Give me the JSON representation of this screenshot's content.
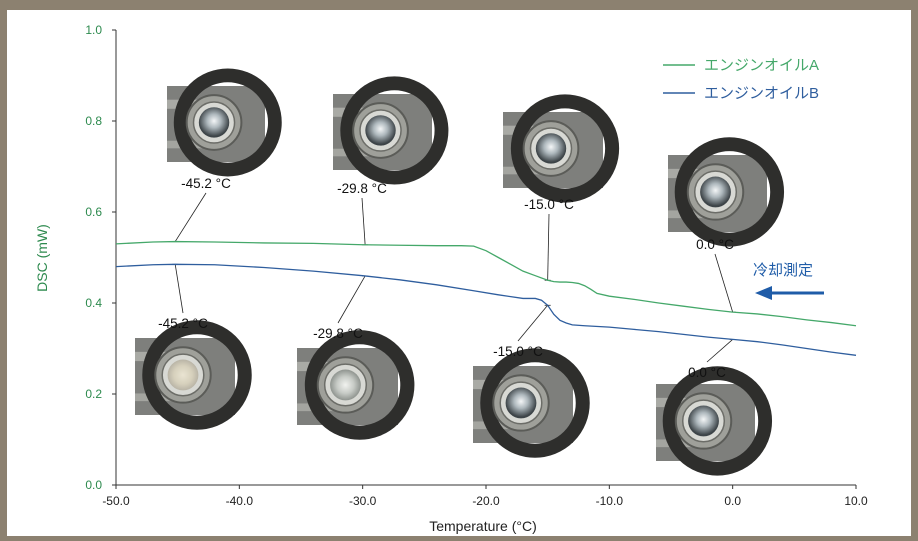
{
  "colors": {
    "series_a": "#45a86a",
    "series_b": "#2f5e9e",
    "y_axis": "#2d8a4e",
    "arrow": "#1f5ca8"
  },
  "chart_data": {
    "type": "line",
    "xlabel": "Temperature (°C)",
    "ylabel": "DSC (mW)",
    "xlim": [
      -50,
      10
    ],
    "ylim": [
      0,
      1.0
    ],
    "x_ticks": [
      "-50.0",
      "-40.0",
      "-30.0",
      "-20.0",
      "-10.0",
      "0.0",
      "10.0"
    ],
    "x_tick_values": [
      -50,
      -40,
      -30,
      -20,
      -10,
      0,
      10
    ],
    "y_ticks": [
      "0.0",
      "0.2",
      "0.4",
      "0.6",
      "0.8",
      "1.0"
    ],
    "y_tick_values": [
      0,
      0.2,
      0.4,
      0.6,
      0.8,
      1.0
    ],
    "grid": false,
    "legend_position": "top-right",
    "series": [
      {
        "name": "エンジンオイルA",
        "color_key": "series_a",
        "x": [
          -50,
          -47,
          -45.2,
          -42,
          -38,
          -34,
          -30,
          -27,
          -24,
          -22,
          -21,
          -20,
          -19,
          -18,
          -17,
          -16,
          -15,
          -14.5,
          -14,
          -13.5,
          -13,
          -12.5,
          -12,
          -11.5,
          -11,
          -10,
          -8,
          -6,
          -4,
          -2,
          0,
          2,
          4,
          6,
          8,
          10
        ],
        "y": [
          0.53,
          0.534,
          0.535,
          0.534,
          0.532,
          0.531,
          0.528,
          0.527,
          0.526,
          0.526,
          0.525,
          0.515,
          0.5,
          0.485,
          0.47,
          0.46,
          0.45,
          0.447,
          0.446,
          0.446,
          0.445,
          0.443,
          0.438,
          0.43,
          0.421,
          0.415,
          0.408,
          0.4,
          0.393,
          0.386,
          0.38,
          0.376,
          0.37,
          0.363,
          0.357,
          0.35
        ]
      },
      {
        "name": "エンジンオイルB",
        "color_key": "series_b",
        "x": [
          -50,
          -47,
          -45.2,
          -42,
          -38,
          -34,
          -30,
          -27,
          -24,
          -21,
          -19,
          -18,
          -17,
          -16,
          -15.5,
          -15,
          -14.5,
          -14,
          -13.5,
          -13,
          -12,
          -10,
          -8,
          -6,
          -4,
          -2,
          0,
          2,
          4,
          6,
          8,
          10
        ],
        "y": [
          0.48,
          0.484,
          0.485,
          0.484,
          0.478,
          0.47,
          0.46,
          0.451,
          0.44,
          0.427,
          0.418,
          0.414,
          0.41,
          0.41,
          0.406,
          0.395,
          0.375,
          0.362,
          0.356,
          0.352,
          0.35,
          0.347,
          0.342,
          0.337,
          0.331,
          0.325,
          0.32,
          0.315,
          0.308,
          0.3,
          0.292,
          0.285
        ]
      }
    ],
    "annotations_top": [
      {
        "label": "-45.2 °C",
        "x": -45.2
      },
      {
        "label": "-29.8 °C",
        "x": -29.8
      },
      {
        "label": "-15.0 °C",
        "x": -15.0
      },
      {
        "label": "0.0 °C",
        "x": 0.0
      }
    ],
    "annotations_bottom": [
      {
        "label": "-45.2 °C",
        "x": -45.2
      },
      {
        "label": "-29.8 °C",
        "x": -29.8
      },
      {
        "label": "-15.0 °C",
        "x": -15.0
      },
      {
        "label": "0.0 °C",
        "x": 0.0
      }
    ],
    "arrow_label": "冷却測定"
  }
}
